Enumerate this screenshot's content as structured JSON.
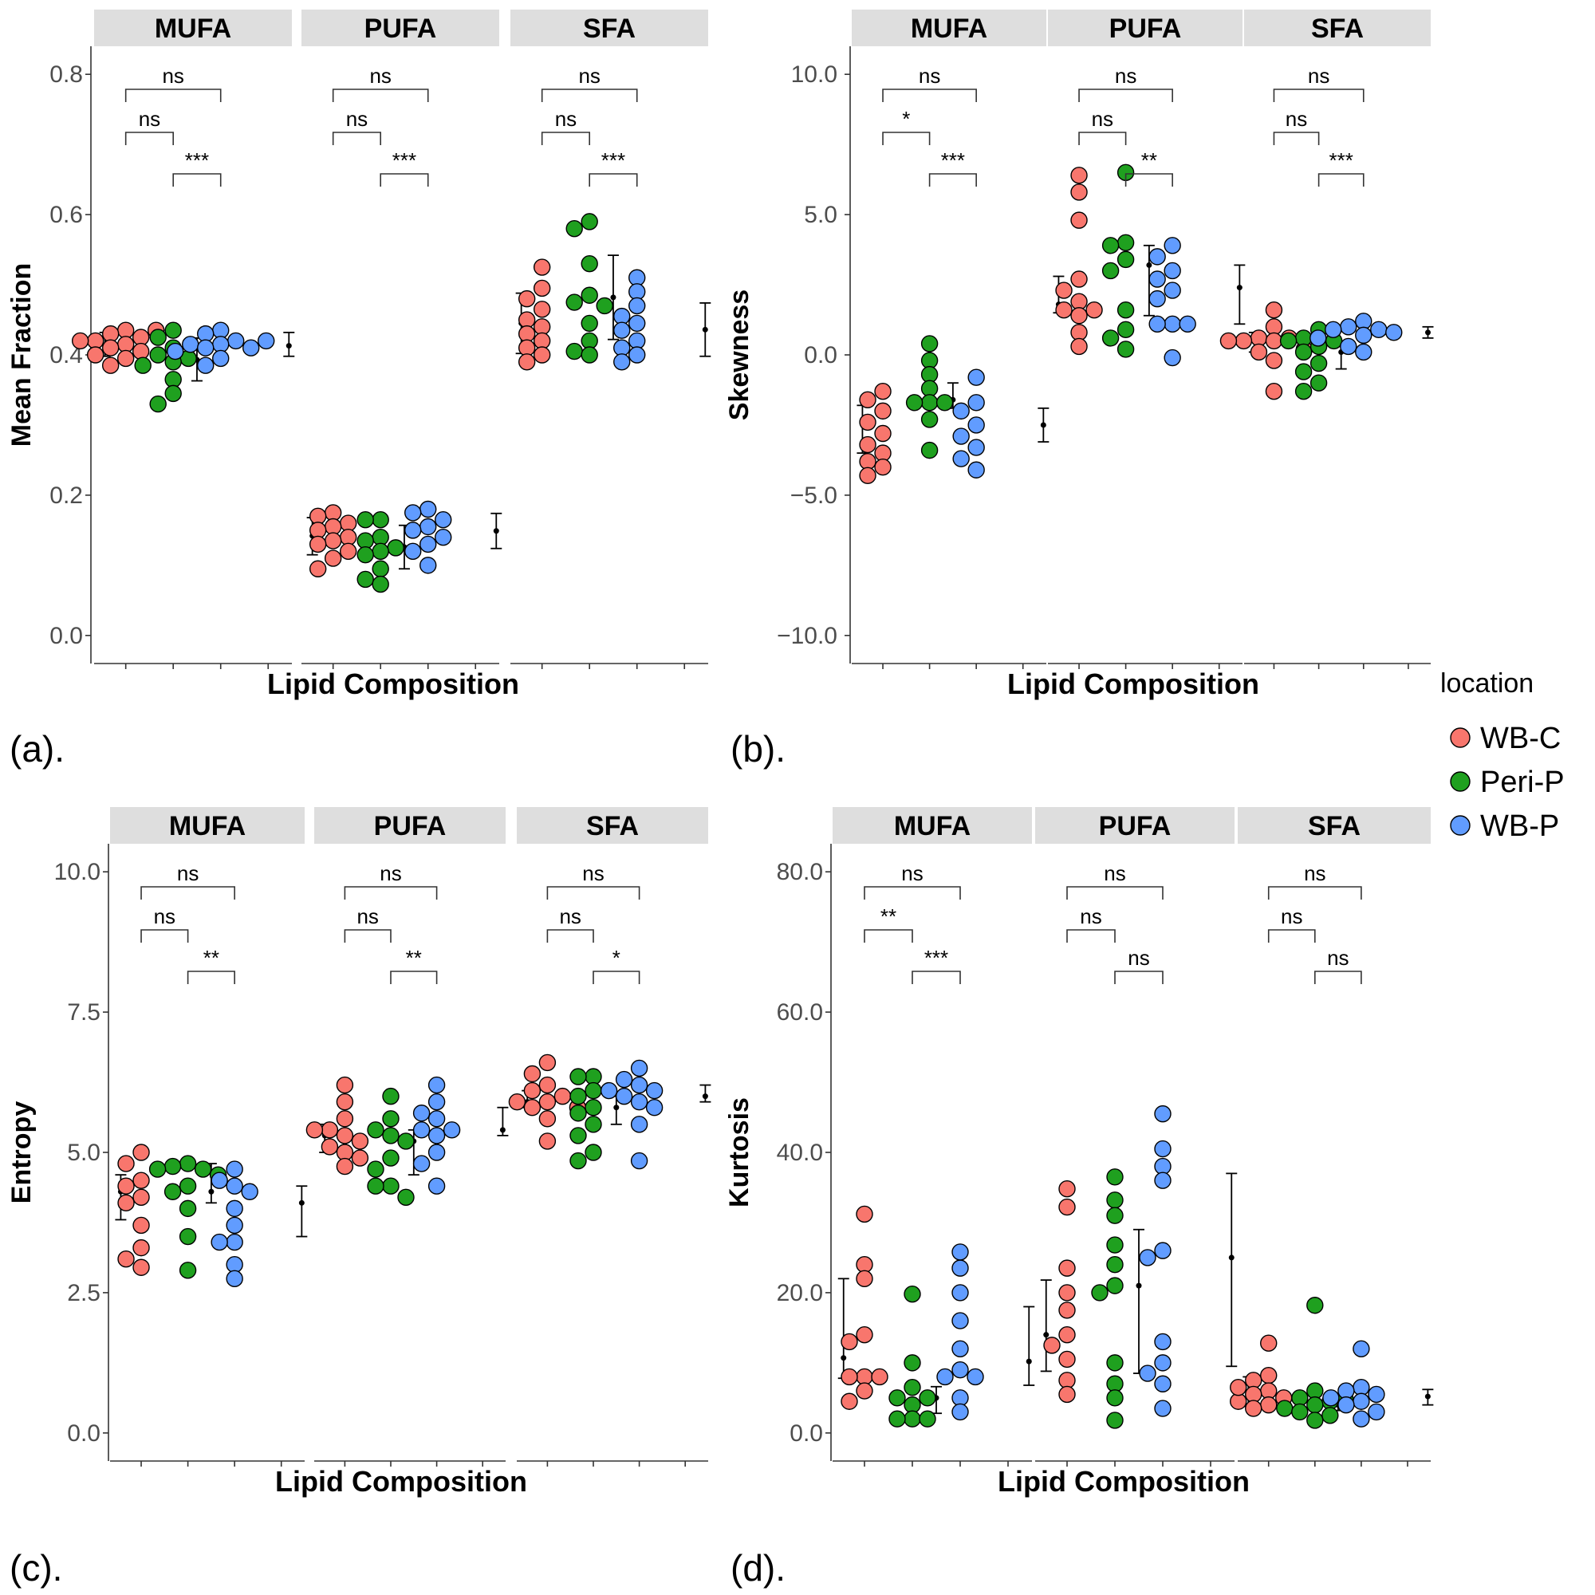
{
  "legend": {
    "title": "location",
    "items": [
      {
        "label": "WB-C",
        "color": "#F8766D"
      },
      {
        "label": "Peri-P",
        "color": "#1FA01F"
      },
      {
        "label": "WB-P",
        "color": "#619CFF"
      }
    ]
  },
  "chart_data": [
    {
      "type": "scatter",
      "panel_label": "(a).",
      "ylabel": "Mean Fraction",
      "xlabel": "Lipid Composition",
      "ylim": [
        -0.04,
        0.84
      ],
      "ticks": [
        0.0,
        0.2,
        0.4,
        0.6,
        0.8
      ],
      "tick_labels": [
        "0.0",
        "0.2",
        "0.4",
        "0.6",
        "0.8"
      ],
      "facets": [
        {
          "name": "MUFA",
          "points": {
            "WB-C": [
              0.435,
              0.43,
              0.425,
              0.42,
              0.415,
              0.41,
              0.405,
              0.4,
              0.395,
              0.385,
              0.435,
              0.42
            ],
            "Peri-P": [
              0.435,
              0.425,
              0.41,
              0.4,
              0.395,
              0.39,
              0.385,
              0.365,
              0.345,
              0.33
            ],
            "WB-P": [
              0.435,
              0.43,
              0.42,
              0.415,
              0.415,
              0.41,
              0.41,
              0.405,
              0.395,
              0.385,
              0.42
            ]
          },
          "errorbars": [
            {
              "mean": 0.413,
              "lo": 0.398,
              "hi": 0.432
            },
            {
              "mean": 0.393,
              "lo": 0.363,
              "hi": 0.424
            },
            {
              "mean": 0.413,
              "lo": 0.398,
              "hi": 0.432
            }
          ],
          "comparisons": [
            "ns",
            "ns",
            "***"
          ]
        },
        {
          "name": "PUFA",
          "points": {
            "WB-C": [
              0.175,
              0.17,
              0.16,
              0.155,
              0.15,
              0.14,
              0.135,
              0.13,
              0.12,
              0.11,
              0.095
            ],
            "Peri-P": [
              0.165,
              0.165,
              0.14,
              0.135,
              0.125,
              0.12,
              0.115,
              0.095,
              0.08,
              0.073
            ],
            "WB-P": [
              0.18,
              0.175,
              0.165,
              0.155,
              0.15,
              0.14,
              0.13,
              0.12,
              0.1
            ]
          },
          "errorbars": [
            {
              "mean": 0.142,
              "lo": 0.115,
              "hi": 0.168
            },
            {
              "mean": 0.126,
              "lo": 0.095,
              "hi": 0.157
            },
            {
              "mean": 0.149,
              "lo": 0.124,
              "hi": 0.174
            }
          ],
          "comparisons": [
            "ns",
            "ns",
            "***"
          ]
        },
        {
          "name": "SFA",
          "points": {
            "WB-C": [
              0.525,
              0.495,
              0.48,
              0.465,
              0.45,
              0.44,
              0.43,
              0.42,
              0.41,
              0.4,
              0.39
            ],
            "Peri-P": [
              0.59,
              0.58,
              0.53,
              0.485,
              0.475,
              0.47,
              0.445,
              0.42,
              0.405,
              0.4
            ],
            "WB-P": [
              0.51,
              0.49,
              0.47,
              0.455,
              0.445,
              0.435,
              0.42,
              0.41,
              0.4,
              0.39
            ]
          },
          "errorbars": [
            {
              "mean": 0.445,
              "lo": 0.402,
              "hi": 0.488
            },
            {
              "mean": 0.482,
              "lo": 0.422,
              "hi": 0.542
            },
            {
              "mean": 0.436,
              "lo": 0.398,
              "hi": 0.474
            }
          ],
          "comparisons": [
            "ns",
            "ns",
            "***"
          ]
        }
      ]
    },
    {
      "type": "scatter",
      "panel_label": "(b).",
      "ylabel": "Skewness",
      "xlabel": "Lipid Composition",
      "ylim": [
        -11,
        11
      ],
      "ticks": [
        -10,
        -5,
        0,
        5,
        10
      ],
      "tick_labels": [
        "−10.0",
        "−5.0",
        "0.0",
        "5.0",
        "10.0"
      ],
      "facets": [
        {
          "name": "MUFA",
          "points": {
            "WB-C": [
              -1.3,
              -1.6,
              -2.0,
              -2.4,
              -2.8,
              -3.2,
              -3.5,
              -3.8,
              -4.0,
              -4.3
            ],
            "Peri-P": [
              0.4,
              -0.2,
              -0.7,
              -1.2,
              -1.7,
              -1.7,
              -1.7,
              -2.3,
              -3.4
            ],
            "WB-P": [
              -0.8,
              -1.7,
              -2.0,
              -2.5,
              -2.9,
              -3.3,
              -3.7,
              -4.1
            ]
          },
          "errorbars": [
            {
              "mean": -2.4,
              "lo": -3.5,
              "hi": -1.8
            },
            {
              "mean": -1.6,
              "lo": -1.9,
              "hi": -1.0
            },
            {
              "mean": -2.5,
              "lo": -3.1,
              "hi": -1.9
            }
          ],
          "comparisons": [
            "ns",
            "*",
            "***"
          ]
        },
        {
          "name": "PUFA",
          "points": {
            "WB-C": [
              6.4,
              5.8,
              4.8,
              2.7,
              2.3,
              1.9,
              1.6,
              1.4,
              0.8,
              0.3,
              1.6
            ],
            "Peri-P": [
              6.5,
              4.0,
              3.9,
              3.4,
              3.0,
              1.6,
              0.9,
              0.6,
              0.2
            ],
            "WB-P": [
              3.9,
              3.5,
              3.0,
              2.7,
              2.3,
              2.0,
              1.1,
              1.1,
              1.1,
              -0.1
            ]
          },
          "errorbars": [
            {
              "mean": 1.8,
              "lo": 1.5,
              "hi": 2.8
            },
            {
              "mean": 3.2,
              "lo": 1.4,
              "hi": 3.9
            },
            {
              "mean": 2.4,
              "lo": 1.1,
              "hi": 3.2
            }
          ],
          "comparisons": [
            "ns",
            "ns",
            "**"
          ]
        },
        {
          "name": "SFA",
          "points": {
            "WB-C": [
              1.6,
              1.0,
              0.6,
              0.6,
              0.5,
              0.5,
              0.2,
              0.1,
              -0.2,
              -1.3,
              0.5
            ],
            "Peri-P": [
              0.9,
              0.6,
              0.5,
              0.5,
              0.3,
              0.1,
              -0.3,
              -0.6,
              -1.0,
              -1.3
            ],
            "WB-P": [
              1.2,
              1.0,
              0.9,
              0.9,
              0.8,
              0.7,
              0.6,
              0.3,
              0.1
            ]
          },
          "errorbars": [
            {
              "mean": 0.5,
              "lo": 0.1,
              "hi": 0.8
            },
            {
              "mean": 0.1,
              "lo": -0.5,
              "hi": 0.5
            },
            {
              "mean": 0.8,
              "lo": 0.6,
              "hi": 1.0
            }
          ],
          "comparisons": [
            "ns",
            "ns",
            "***"
          ]
        }
      ]
    },
    {
      "type": "scatter",
      "panel_label": "(c).",
      "ylabel": "Entropy",
      "xlabel": "Lipid Composition",
      "ylim": [
        -0.5,
        10.5
      ],
      "ticks": [
        0.0,
        2.5,
        5.0,
        7.5,
        10.0
      ],
      "tick_labels": [
        "0.0",
        "2.5",
        "5.0",
        "7.5",
        "10.0"
      ],
      "facets": [
        {
          "name": "MUFA",
          "points": {
            "WB-C": [
              5.0,
              4.8,
              4.5,
              4.4,
              4.2,
              4.1,
              3.7,
              3.3,
              3.1,
              2.95
            ],
            "Peri-P": [
              4.8,
              4.75,
              4.7,
              4.7,
              4.6,
              4.4,
              4.3,
              4.0,
              3.5,
              2.9
            ],
            "WB-P": [
              4.7,
              4.5,
              4.4,
              4.3,
              4.0,
              3.7,
              3.4,
              3.4,
              3.0,
              2.75
            ]
          },
          "errorbars": [
            {
              "mean": 4.3,
              "lo": 3.8,
              "hi": 4.6
            },
            {
              "mean": 4.3,
              "lo": 4.1,
              "hi": 4.8
            },
            {
              "mean": 4.1,
              "lo": 3.5,
              "hi": 4.4
            }
          ],
          "comparisons": [
            "ns",
            "ns",
            "**"
          ]
        },
        {
          "name": "PUFA",
          "points": {
            "WB-C": [
              6.2,
              5.9,
              5.6,
              5.4,
              5.3,
              5.2,
              5.1,
              5.0,
              4.9,
              4.75,
              5.4
            ],
            "Peri-P": [
              6.0,
              5.6,
              5.4,
              5.3,
              5.2,
              4.9,
              4.7,
              4.4,
              4.4,
              4.2
            ],
            "WB-P": [
              6.2,
              5.9,
              5.7,
              5.6,
              5.4,
              5.4,
              5.3,
              5.0,
              4.8,
              4.4
            ]
          },
          "errorbars": [
            {
              "mean": 5.3,
              "lo": 5.0,
              "hi": 5.5
            },
            {
              "mean": 5.2,
              "lo": 4.6,
              "hi": 5.4
            },
            {
              "mean": 5.4,
              "lo": 5.3,
              "hi": 5.8
            }
          ],
          "comparisons": [
            "ns",
            "ns",
            "**"
          ]
        },
        {
          "name": "SFA",
          "points": {
            "WB-C": [
              6.6,
              6.4,
              6.2,
              6.1,
              6.0,
              5.9,
              5.9,
              5.8,
              5.8,
              5.6,
              5.2
            ],
            "Peri-P": [
              6.35,
              6.35,
              6.1,
              6.0,
              5.8,
              5.7,
              5.5,
              5.3,
              5.0,
              4.85
            ],
            "WB-P": [
              6.5,
              6.3,
              6.2,
              6.1,
              6.1,
              6.0,
              5.9,
              5.8,
              5.5,
              4.85
            ]
          },
          "errorbars": [
            {
              "mean": 5.9,
              "lo": 5.8,
              "hi": 6.1
            },
            {
              "mean": 5.8,
              "lo": 5.5,
              "hi": 6.0
            },
            {
              "mean": 6.0,
              "lo": 5.9,
              "hi": 6.2
            }
          ],
          "comparisons": [
            "ns",
            "ns",
            "*"
          ]
        }
      ]
    },
    {
      "type": "scatter",
      "panel_label": "(d).",
      "ylabel": "Kurtosis",
      "xlabel": "Lipid Composition",
      "ylim": [
        -4,
        84
      ],
      "ticks": [
        0,
        20,
        40,
        60,
        80
      ],
      "tick_labels": [
        "0.0",
        "20.0",
        "40.0",
        "60.0",
        "80.0"
      ],
      "facets": [
        {
          "name": "MUFA",
          "points": {
            "WB-C": [
              31.2,
              24.0,
              22.0,
              14.0,
              13.0,
              8.0,
              8.0,
              8.0,
              6.0,
              4.5
            ],
            "Peri-P": [
              19.8,
              10.0,
              6.5,
              5.0,
              5.0,
              4.0,
              2.0,
              2.0,
              2.0
            ],
            "WB-P": [
              25.8,
              23.5,
              20.0,
              16.0,
              12.0,
              9.0,
              8.0,
              8.0,
              5.0,
              3.0
            ]
          },
          "errorbars": [
            {
              "mean": 10.7,
              "lo": 7.8,
              "hi": 22.0
            },
            {
              "mean": 5.0,
              "lo": 2.8,
              "hi": 6.6
            },
            {
              "mean": 10.2,
              "lo": 6.8,
              "hi": 18.0
            }
          ],
          "comparisons": [
            "ns",
            "**",
            "***"
          ]
        },
        {
          "name": "PUFA",
          "points": {
            "WB-C": [
              34.8,
              32.2,
              23.5,
              20.0,
              17.5,
              14.0,
              12.5,
              10.5,
              7.5,
              5.5
            ],
            "Peri-P": [
              36.5,
              33.2,
              31.0,
              26.8,
              24.0,
              21.0,
              20.0,
              10.0,
              7.0,
              5.0,
              1.8
            ],
            "WB-P": [
              45.5,
              40.5,
              38.0,
              36.0,
              26.0,
              25.0,
              13.0,
              10.0,
              8.5,
              7.0,
              3.5
            ]
          },
          "errorbars": [
            {
              "mean": 14.0,
              "lo": 8.8,
              "hi": 21.8
            },
            {
              "mean": 21.0,
              "lo": 8.5,
              "hi": 29.0
            },
            {
              "mean": 25.0,
              "lo": 9.5,
              "hi": 37.0
            }
          ],
          "comparisons": [
            "ns",
            "ns",
            "ns"
          ]
        },
        {
          "name": "SFA",
          "points": {
            "WB-C": [
              12.8,
              8.2,
              7.5,
              6.0,
              5.5,
              5.0,
              4.5,
              4.0,
              3.5,
              6.5
            ],
            "Peri-P": [
              18.2,
              6.0,
              5.0,
              4.5,
              4.0,
              3.5,
              3.0,
              2.5,
              1.8,
              4.8
            ],
            "WB-P": [
              12.0,
              6.5,
              6.0,
              5.5,
              5.0,
              4.5,
              4.0,
              3.0,
              2.0
            ]
          },
          "errorbars": [
            {
              "mean": 5.8,
              "lo": 3.8,
              "hi": 8.0
            },
            {
              "mean": 4.0,
              "lo": 3.2,
              "hi": 4.8
            },
            {
              "mean": 5.2,
              "lo": 4.0,
              "hi": 6.2
            }
          ],
          "comparisons": [
            "ns",
            "ns",
            "ns"
          ]
        }
      ]
    }
  ]
}
